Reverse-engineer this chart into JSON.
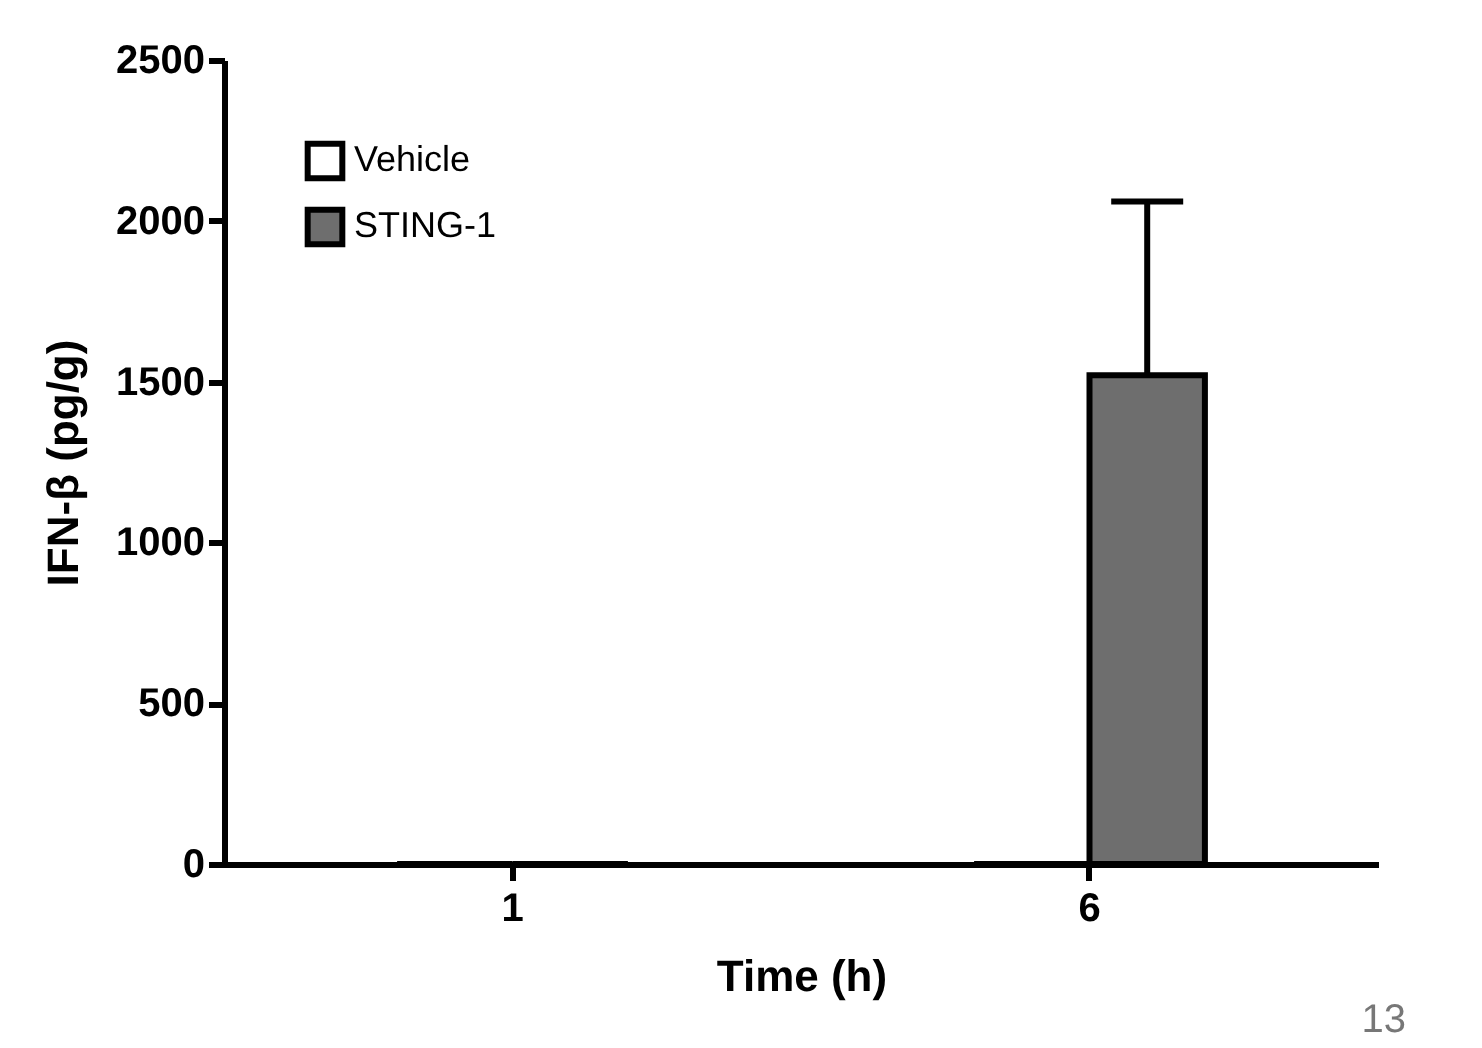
{
  "chart_data": {
    "type": "bar",
    "xlabel": "Time (h)",
    "ylabel": "IFN-β  (pg/g)",
    "categories": [
      "1",
      "6"
    ],
    "series": [
      {
        "name": "Vehicle",
        "color": "#ffffff",
        "values": [
          0,
          0
        ]
      },
      {
        "name": "STING-1",
        "color": "#6e6e6e",
        "values": [
          0,
          1520
        ],
        "errors": [
          null,
          [
            1520,
            2060
          ]
        ]
      }
    ],
    "ylim": [
      0,
      2500
    ],
    "yticks": [
      0,
      500,
      1000,
      1500,
      2000,
      2500
    ],
    "grid": false,
    "legend": "top left",
    "annotations": [
      "13"
    ]
  }
}
